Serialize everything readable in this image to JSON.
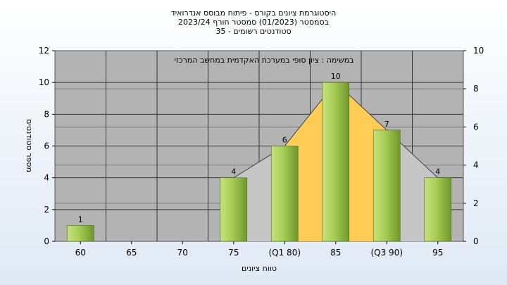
{
  "chart_data": {
    "type": "bar",
    "title_lines": [
      "היסטוגרמת ציונים בקורס - פיתוח מבוסס אנדרואיד",
      "בסמסטר  (01/2023)  סמסטר חורף 2023/24",
      "סטודנטים רשומים - 35"
    ],
    "subtitle": "במשימה : ציון סופי במערכת האקדמית במחשב המרכזי",
    "xlabel": "טווח ציונים",
    "ylabel": "מספר סטודנטים",
    "categories": [
      "60",
      "65",
      "70",
      "75",
      "(Q1 80)",
      "85",
      "(Q3 90)",
      "95"
    ],
    "values": [
      1,
      0,
      0,
      4,
      6,
      10,
      7,
      4
    ],
    "bar_labels": [
      "1",
      "",
      "",
      "4",
      "6",
      "10",
      "7",
      "4"
    ],
    "ylim": [
      0,
      12
    ],
    "yticks": [
      0,
      2,
      4,
      6,
      8,
      10,
      12
    ],
    "y2lim": [
      0,
      10
    ],
    "y2ticks": [
      0,
      2,
      4,
      6,
      8,
      10
    ],
    "distribution_curve": {
      "x": [
        "75",
        "(Q1 80)",
        "85",
        "(Q3 90)",
        "95"
      ],
      "values": [
        4,
        6,
        10,
        7,
        4
      ]
    },
    "grid": true,
    "colors": {
      "plot_bg": "#b3b3b3",
      "bar": "#9bc34a",
      "band": "#ffcc55",
      "curve_fill": "#c6c6c6"
    }
  }
}
